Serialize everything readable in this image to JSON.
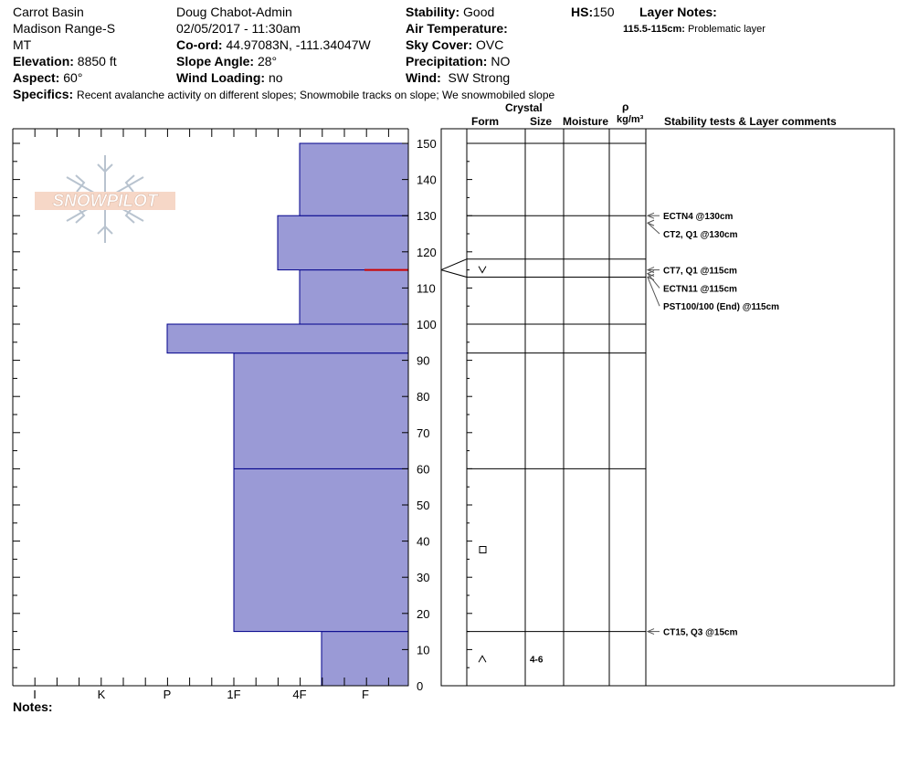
{
  "header": {
    "location": "Carrot Basin",
    "range": "Madison Range-S",
    "state": "MT",
    "elevation_label": "Elevation:",
    "elevation_value": "8850 ft",
    "aspect_label": "Aspect:",
    "aspect_value": "60°",
    "observer": "Doug Chabot-Admin",
    "datetime": "02/05/2017 - 11:30am",
    "coord_label": "Co-ord:",
    "coord_value": "44.97083N, -111.34047W",
    "slope_label": "Slope Angle:",
    "slope_value": "28°",
    "wind_loading_label": "Wind Loading:",
    "wind_loading_value": "no",
    "stability_label": "Stability:",
    "stability_value": "Good",
    "air_temp_label": "Air Temperature:",
    "sky_label": "Sky Cover:",
    "sky_value": "OVC",
    "precip_label": "Precipitation:",
    "precip_value": "NO",
    "wind_label": "Wind:",
    "wind_value": "SW Strong",
    "hs_label": "HS:",
    "hs_value": "150",
    "layer_notes_label": "Layer Notes:",
    "layer_note_range": "115.5-115cm:",
    "layer_note_text": "Problematic layer",
    "specifics_label": "Specifics:",
    "specifics_text": "Recent avalanche activity on different slopes;  Snowmobile tracks on slope;  We snowmobiled slope"
  },
  "columns": {
    "crystal": "Crystal",
    "form": "Form",
    "size": "Size",
    "moisture": "Moisture",
    "rho": "ρ",
    "density_unit": "kg/m³",
    "stability_comments": "Stability tests & Layer comments"
  },
  "logo_text": "SNOWPILOT",
  "notes_label": "Notes:",
  "colors": {
    "layer_fill": "#9a9ad6",
    "layer_stroke": "#00008b",
    "weak_layer": "#cc0000"
  },
  "chart_data": {
    "type": "bar",
    "title": "",
    "xlabel": "",
    "ylabel": "",
    "ylim": [
      0,
      150
    ],
    "y_ticks": [
      0,
      10,
      20,
      30,
      40,
      50,
      60,
      70,
      80,
      90,
      100,
      110,
      120,
      130,
      140,
      150
    ],
    "hardness_scale": [
      "I",
      "K",
      "P",
      "1F",
      "4F",
      "F"
    ],
    "layers": [
      {
        "bottom": 0,
        "top": 15,
        "hardness": "4F-"
      },
      {
        "bottom": 15,
        "top": 60,
        "hardness": "1F"
      },
      {
        "bottom": 60,
        "top": 92,
        "hardness": "1F"
      },
      {
        "bottom": 92,
        "top": 100,
        "hardness": "P"
      },
      {
        "bottom": 100,
        "top": 115,
        "hardness": "4F"
      },
      {
        "bottom": 115,
        "top": 130,
        "hardness": "4F+"
      },
      {
        "bottom": 130,
        "top": 150,
        "hardness": "4F"
      }
    ],
    "weak_layer_cm": 115,
    "layer_boundaries": [
      150,
      130,
      118,
      113,
      100,
      92,
      60,
      15
    ],
    "crystals": [
      {
        "height": 115,
        "symbol": "v"
      },
      {
        "height": 37.5,
        "symbol": "□"
      },
      {
        "height": 7.5,
        "symbol": "^",
        "size": "4-6"
      }
    ],
    "stability_tests": [
      {
        "height": 130,
        "label": "ECTN4 @130cm",
        "arrow_height": 130
      },
      {
        "height": 125,
        "label": "CT2, Q1 @130cm",
        "arrow_height": 128
      },
      {
        "height": 115,
        "label": "CT7, Q1 @115cm",
        "arrow_height": 115
      },
      {
        "height": 110,
        "label": "ECTN11 @115cm",
        "arrow_height": 114
      },
      {
        "height": 105,
        "label": "PST100/100 (End) @115cm",
        "arrow_height": 113
      },
      {
        "height": 15,
        "label": "CT15, Q3 @15cm",
        "arrow_height": 15
      }
    ]
  }
}
